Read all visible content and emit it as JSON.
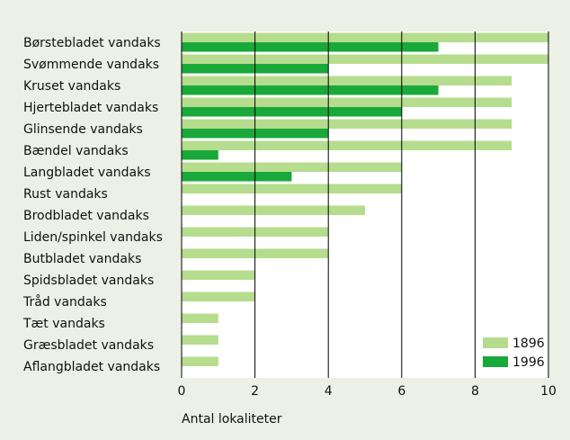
{
  "chart_data": {
    "type": "bar",
    "orientation": "horizontal",
    "xlabel": "Antal lokaliteter",
    "categories": [
      "Børstebladet vandaks",
      "Svømmende vandaks",
      "Kruset vandaks",
      "Hjertebladet vandaks",
      "Glinsende vandaks",
      "Bændel vandaks",
      "Langbladet vandaks",
      "Rust vandaks",
      "Brodbladet vandaks",
      "Liden/spinkel vandaks",
      "Butbladet vandaks",
      "Spidsbladet vandaks",
      "Tråd vandaks",
      "Tæt vandaks",
      "Græsbladet vandaks",
      "Aflangbladet vandaks"
    ],
    "series": [
      {
        "name": "1896",
        "color": "#b6dc8e",
        "values": [
          10,
          10,
          9,
          9,
          9,
          9,
          6,
          6,
          5,
          4,
          4,
          2,
          2,
          1,
          1,
          1
        ]
      },
      {
        "name": "1996",
        "color": "#19a83a",
        "values": [
          7,
          4,
          7,
          6,
          4,
          1,
          3,
          0,
          0,
          0,
          0,
          0,
          0,
          0,
          0,
          0
        ]
      }
    ],
    "xlim": [
      0,
      10
    ],
    "xticks": [
      0,
      2,
      4,
      6,
      8,
      10
    ],
    "grid": true,
    "legend": "lower right"
  }
}
